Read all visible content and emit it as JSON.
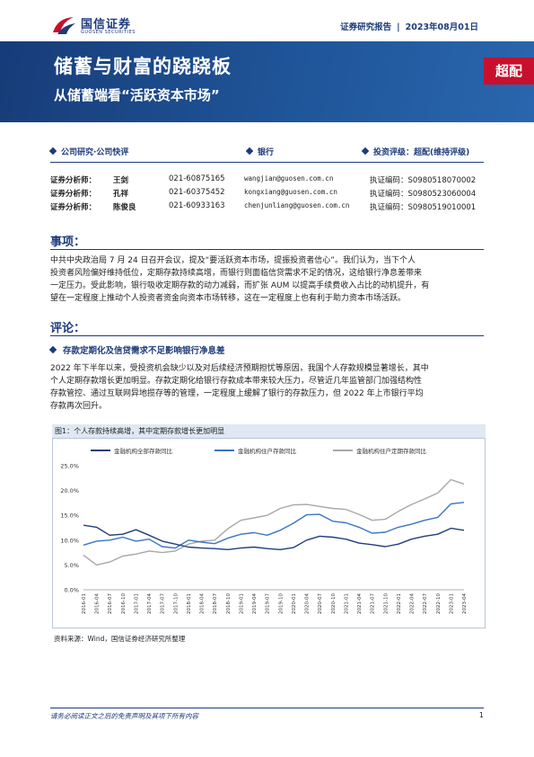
{
  "header": {
    "logo_cn": "国信证券",
    "logo_en": "GUOSEN SECURITIES",
    "report_type": "证券研究报告",
    "date": "2023年08月01日"
  },
  "banner": {
    "title": "储蓄与财富的跷跷板",
    "subtitle": "从储蓄端看“活跃资本市场”",
    "rating_tag": "超配"
  },
  "meta": {
    "category": "公司研究·公司快评",
    "industry": "银行",
    "rating": "投资评级：超配(维持评级)"
  },
  "analysts": [
    {
      "role": "证券分析师：",
      "name": "王剑",
      "phone": "021-60875165",
      "email": "wangjian@guosen.com.cn",
      "cert": "执证编码：S0980518070002"
    },
    {
      "role": "证券分析师：",
      "name": "孔祥",
      "phone": "021-60375452",
      "email": "kongxiang@guosen.com.cn",
      "cert": "执证编码：S0980523060004"
    },
    {
      "role": "证券分析师：",
      "name": "陈俊良",
      "phone": "021-60933163",
      "email": "chenjunliang@guosen.com.cn",
      "cert": "执证编码：S0980519010001"
    }
  ],
  "section1": {
    "heading": "事项：",
    "lines": [
      "中共中央政治局 7 月 24 日召开会议，提及“要活跃资本市场，提振投资者信心”。我们认为，当下个人",
      "投资者风险偏好维持低位，定期存款持续高增，而银行则面临信贷需求不足的情况，这给银行净息差带来",
      "一定压力。受此影响，银行吸收定期存款的动力减弱，而扩张 AUM 以提高手续费收入占比的动机提升，有",
      "望在一定程度上推动个人投资者资金向资本市场转移，这在一定程度上也有利于助力资本市场活跃。"
    ]
  },
  "section2": {
    "heading": "评论：",
    "subheading": "存款定期化及信贷需求不足影响银行净息差",
    "lines": [
      "2022 年下半年以来，受投资机会缺少以及对后续经济预期担忧等原因，我国个人存款规模显著增长，其中",
      "个人定期存款增长更加明显。存款定期化给银行存款成本带来较大压力，尽管近几年监管部门加强结构性",
      "存款管控、通过互联网异地揽存等的管理，一定程度上缓解了银行的存款压力，但 2022 年上市银行平均",
      "存款再次回升。"
    ]
  },
  "figure": {
    "caption": "图1：个人存款持续高增，其中定期存款增长更加明显",
    "source": "资料来源：Wind，国信证券经济研究所整理"
  },
  "chart_data": {
    "type": "line",
    "title": "",
    "xlabel": "",
    "ylabel": "",
    "ylim": [
      0,
      25
    ],
    "yticks": [
      "0.0%",
      "5.0%",
      "10.0%",
      "15.0%",
      "20.0%",
      "25.0%"
    ],
    "x": [
      "2016-01",
      "2016-04",
      "2016-07",
      "2016-10",
      "2017-01",
      "2017-04",
      "2017-07",
      "2017-10",
      "2018-01",
      "2018-04",
      "2018-07",
      "2018-10",
      "2019-01",
      "2019-04",
      "2019-07",
      "2019-10",
      "2020-01",
      "2020-04",
      "2020-07",
      "2020-10",
      "2021-01",
      "2021-04",
      "2021-07",
      "2021-10",
      "2022-01",
      "2022-04",
      "2022-07",
      "2022-10",
      "2023-01",
      "2023-04"
    ],
    "xticks": [
      "2016-01",
      "2016-04",
      "2016-07",
      "2016-10",
      "2017-01",
      "2017-04",
      "2017-07",
      "2017-10",
      "2018-01",
      "2018-04",
      "2018-07",
      "2018-10",
      "2019-01",
      "2019-04",
      "2019-07",
      "2019-10",
      "2020-01",
      "2020-04",
      "2020-07",
      "2020-10",
      "2021-01",
      "2021-04",
      "2021-07",
      "2021-10",
      "2022-01",
      "2022-04",
      "2022-07",
      "2022-10",
      "2023-01",
      "2023-04"
    ],
    "legend_position": "top",
    "grid": false,
    "series": [
      {
        "name": "金融机构全部存款同比",
        "color": "#1f3f7a",
        "values": [
          13.0,
          12.6,
          11.0,
          11.2,
          12.1,
          11.0,
          9.8,
          9.2,
          8.6,
          8.4,
          8.3,
          8.1,
          8.4,
          8.6,
          8.3,
          8.1,
          8.5,
          10.0,
          10.8,
          10.6,
          10.2,
          9.4,
          9.1,
          8.7,
          9.2,
          10.2,
          10.8,
          11.2,
          12.4,
          12.0
        ]
      },
      {
        "name": "金融机构住户存款同比",
        "color": "#3a74c4",
        "values": [
          9.0,
          9.8,
          10.0,
          10.6,
          9.8,
          10.2,
          8.7,
          8.4,
          10.0,
          9.6,
          9.3,
          10.4,
          11.2,
          11.5,
          11.0,
          12.0,
          13.4,
          15.1,
          15.2,
          13.8,
          13.5,
          12.6,
          11.4,
          11.6,
          12.6,
          13.2,
          14.0,
          14.6,
          17.3,
          17.6
        ]
      },
      {
        "name": "金融机构住户定期存款同比",
        "color": "#a8a8a8",
        "values": [
          7.0,
          5.0,
          5.6,
          6.8,
          7.2,
          7.8,
          7.5,
          7.8,
          9.2,
          9.8,
          10.0,
          12.3,
          14.0,
          14.5,
          15.0,
          16.4,
          17.1,
          17.2,
          16.8,
          16.4,
          16.2,
          15.2,
          14.0,
          14.2,
          15.8,
          17.2,
          18.3,
          19.5,
          22.2,
          21.3
        ]
      }
    ]
  },
  "footer": {
    "disclaimer": "请务必阅读正文之后的免责声明及其项下所有内容",
    "page": "1"
  }
}
